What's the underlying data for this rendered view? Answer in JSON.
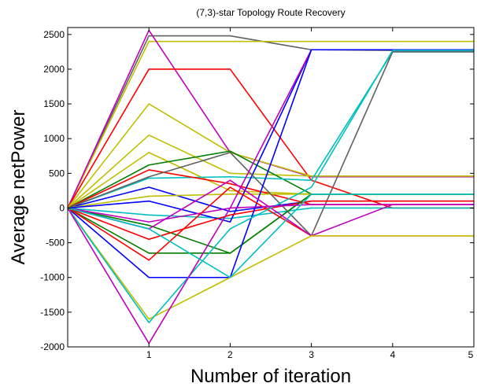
{
  "chart_data": {
    "type": "line",
    "title": "(7,3)-star Topology Route Recovery",
    "xlabel": "Number of iteration",
    "ylabel": "Average netPower",
    "xlim": [
      0,
      5
    ],
    "ylim": [
      -2000,
      2600
    ],
    "xticks": [
      1,
      2,
      3,
      4,
      5
    ],
    "yticks": [
      -2000,
      -1500,
      -1000,
      -500,
      0,
      500,
      1000,
      1500,
      2000,
      2500
    ],
    "grid": false,
    "x": [
      0,
      1,
      2,
      3,
      4,
      5
    ],
    "series": [
      {
        "color": "#606060",
        "values": [
          0,
          2480,
          2480,
          2280,
          2270,
          2270
        ]
      },
      {
        "color": "#bfbf00",
        "values": [
          0,
          2400,
          2400,
          2400,
          2400,
          2400
        ]
      },
      {
        "color": "#bf00bf",
        "values": [
          0,
          2560,
          800,
          450,
          450,
          450
        ]
      },
      {
        "color": "#ff0000",
        "values": [
          0,
          2000,
          2000,
          400,
          0,
          0
        ]
      },
      {
        "color": "#bfbf00",
        "values": [
          0,
          1500,
          800,
          460,
          460,
          460
        ]
      },
      {
        "color": "#bfbf00",
        "values": [
          0,
          1050,
          500,
          460,
          460,
          460
        ]
      },
      {
        "color": "#bfbf00",
        "values": [
          0,
          800,
          250,
          200,
          200,
          200
        ]
      },
      {
        "color": "#007f00",
        "values": [
          0,
          620,
          820,
          200,
          200,
          200
        ]
      },
      {
        "color": "#00bfbf",
        "values": [
          0,
          430,
          450,
          400,
          2250,
          2250
        ]
      },
      {
        "color": "#0000ff",
        "values": [
          0,
          300,
          -50,
          100,
          100,
          100
        ]
      },
      {
        "color": "#ff0000",
        "values": [
          0,
          550,
          350,
          50,
          50,
          50
        ]
      },
      {
        "color": "#bfbf00",
        "values": [
          0,
          170,
          200,
          200,
          200,
          200
        ]
      },
      {
        "color": "#00bfbf",
        "values": [
          0,
          -100,
          -150,
          0,
          0,
          0
        ]
      },
      {
        "color": "#0000ff",
        "values": [
          0,
          100,
          -200,
          2280,
          2280,
          2280
        ]
      },
      {
        "color": "#606060",
        "values": [
          0,
          450,
          800,
          -400,
          2250,
          2250
        ]
      },
      {
        "color": "#007f00",
        "values": [
          0,
          -250,
          -650,
          200,
          200,
          200
        ]
      },
      {
        "color": "#ff0000",
        "values": [
          0,
          -450,
          -100,
          100,
          100,
          100
        ]
      },
      {
        "color": "#bf00bf",
        "values": [
          0,
          -200,
          0,
          2280,
          2280,
          2280
        ]
      },
      {
        "color": "#007f00",
        "values": [
          0,
          -650,
          -650,
          200,
          200,
          200
        ]
      },
      {
        "color": "#0000ff",
        "values": [
          0,
          -1000,
          -1000,
          2280,
          2280,
          2280
        ]
      },
      {
        "color": "#ff0000",
        "values": [
          0,
          -750,
          300,
          -400,
          -400,
          -400
        ]
      },
      {
        "color": "#bf00bf",
        "values": [
          0,
          -300,
          400,
          -400,
          50,
          50
        ]
      },
      {
        "color": "#bfbf00",
        "values": [
          0,
          -1600,
          -1000,
          -400,
          -400,
          -400
        ]
      },
      {
        "color": "#00bfbf",
        "values": [
          0,
          -1650,
          -300,
          300,
          2270,
          2270
        ]
      },
      {
        "color": "#bf00bf",
        "values": [
          0,
          -1950,
          0,
          50,
          50,
          50
        ]
      },
      {
        "color": "#00bfbf",
        "values": [
          0,
          -300,
          -1000,
          200,
          200,
          200
        ]
      }
    ]
  }
}
